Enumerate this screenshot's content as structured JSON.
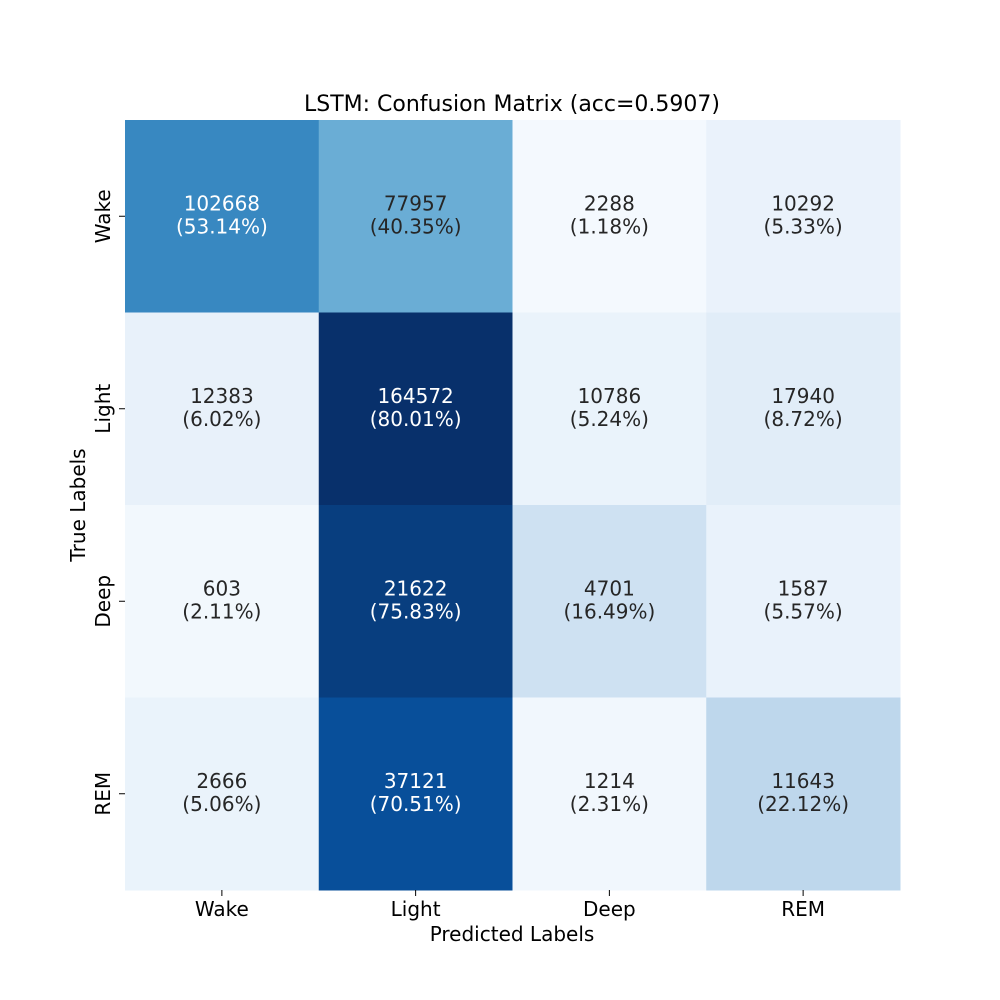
{
  "chart_data": {
    "type": "heatmap",
    "title": "LSTM: Confusion Matrix (acc=0.5907)",
    "xlabel": "Predicted Labels",
    "ylabel": "True Labels",
    "x_categories": [
      "Wake",
      "Light",
      "Deep",
      "REM"
    ],
    "y_categories": [
      "Wake",
      "Light",
      "Deep",
      "REM"
    ],
    "values": [
      [
        102668,
        77957,
        2288,
        10292
      ],
      [
        12383,
        164572,
        10786,
        17940
      ],
      [
        603,
        21622,
        4701,
        1587
      ],
      [
        2666,
        37121,
        1214,
        11643
      ]
    ],
    "percentages": [
      [
        "(53.14%)",
        "(40.35%)",
        "(1.18%)",
        "(5.33%)"
      ],
      [
        "(6.02%)",
        "(80.01%)",
        "(5.24%)",
        "(8.72%)"
      ],
      [
        "(2.11%)",
        "(75.83%)",
        "(16.49%)",
        "(5.57%)"
      ],
      [
        "(5.06%)",
        "(70.51%)",
        "(2.31%)",
        "(22.12%)"
      ]
    ],
    "row_normalized": [
      [
        0.5314,
        0.4035,
        0.0118,
        0.0533
      ],
      [
        0.0602,
        0.8001,
        0.0524,
        0.0872
      ],
      [
        0.0211,
        0.7583,
        0.1649,
        0.0557
      ],
      [
        0.0506,
        0.7051,
        0.0231,
        0.2212
      ]
    ],
    "colormap": "Blues",
    "color_range": [
      0,
      0.8001
    ],
    "colorbar": false,
    "grid": false
  }
}
